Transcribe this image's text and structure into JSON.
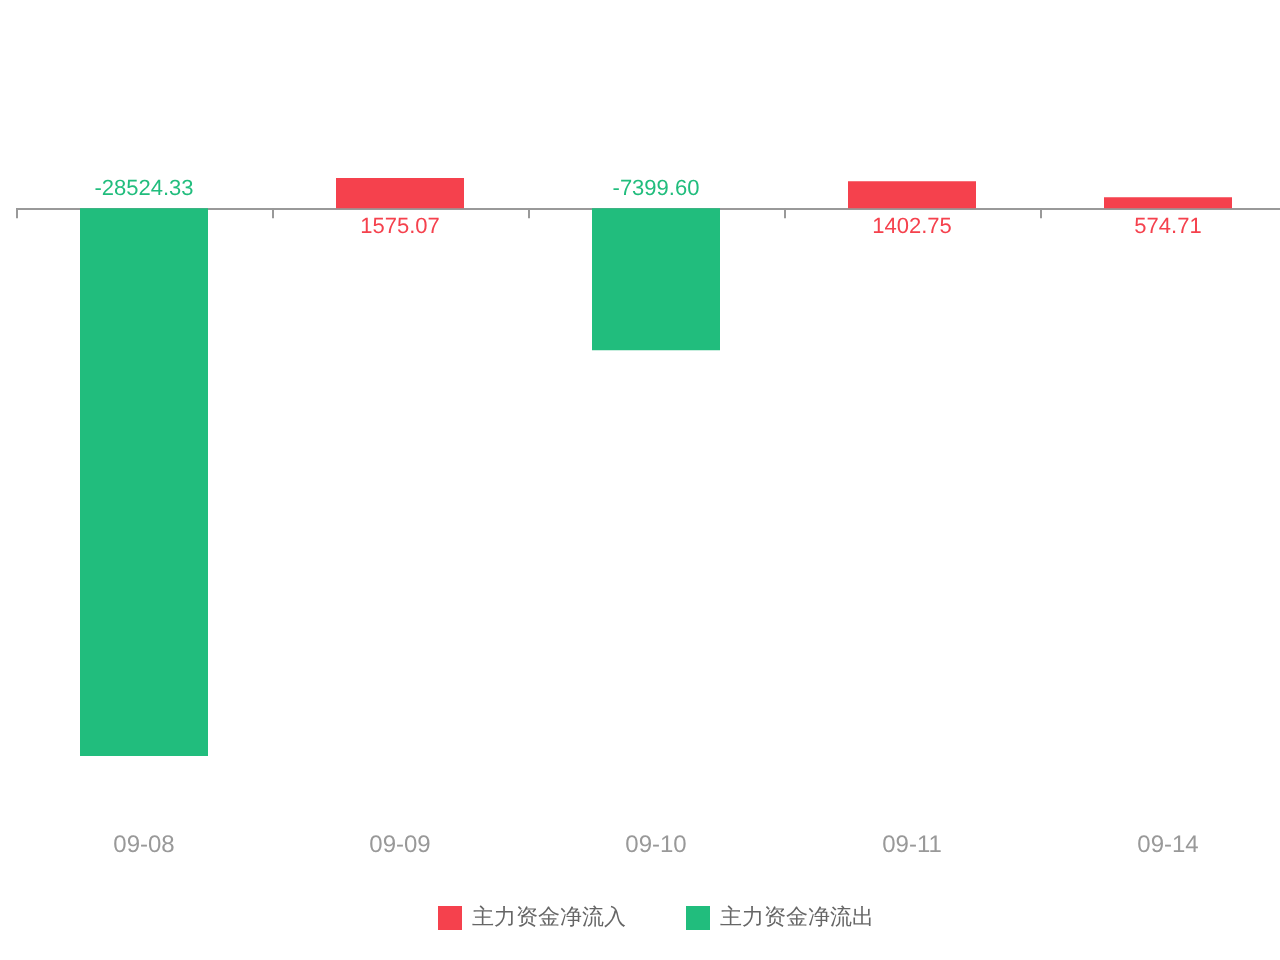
{
  "chart_data": {
    "type": "bar",
    "categories": [
      "09-08",
      "09-09",
      "09-10",
      "09-11",
      "09-14"
    ],
    "series": [
      {
        "name": "主力资金净流入",
        "color": "#f5414d",
        "values": [
          null,
          1575.07,
          null,
          1402.75,
          574.71
        ],
        "value_labels": [
          null,
          "1575.07",
          null,
          "1402.75",
          "574.71"
        ]
      },
      {
        "name": "主力资金净流出",
        "color": "#21bd7d",
        "values": [
          -28524.33,
          null,
          -7399.6,
          null,
          null
        ],
        "value_labels": [
          "-28524.33",
          null,
          "-7399.60",
          null,
          null
        ]
      }
    ],
    "tick_labels": "x",
    "grid": false,
    "legend": "bottom"
  }
}
